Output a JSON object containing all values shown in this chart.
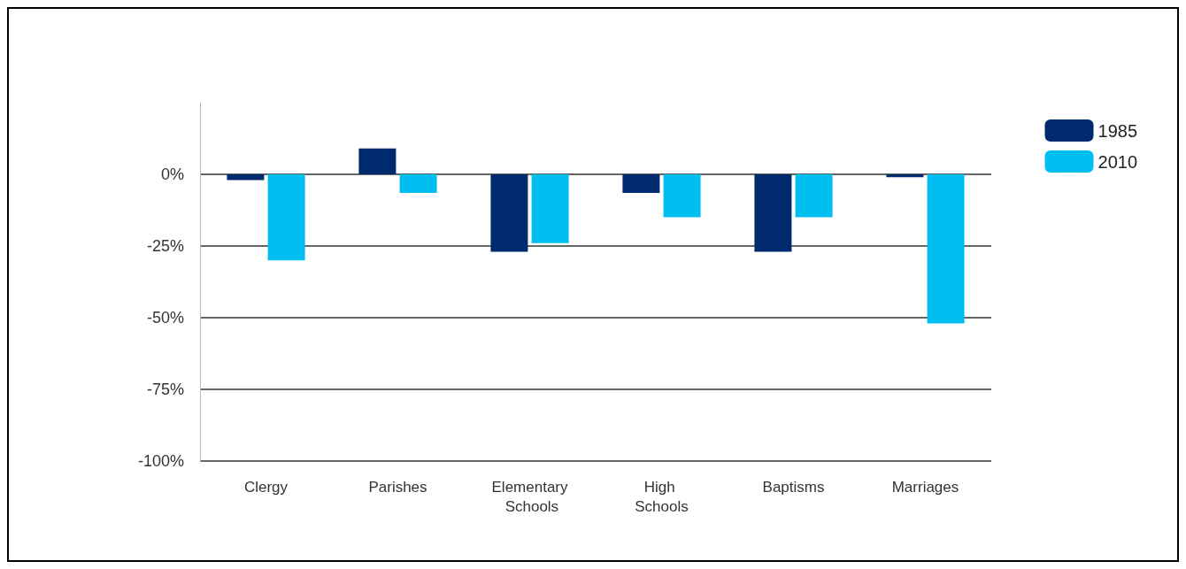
{
  "chart_data": {
    "type": "bar",
    "categories": [
      "Clergy",
      "Parishes",
      "Elementary Schools",
      "High Schools",
      "Baptisms",
      "Marriages"
    ],
    "series": [
      {
        "name": "1985",
        "color": "#002a6e",
        "values": [
          -2,
          9,
          -27,
          -6.5,
          -27,
          -1
        ]
      },
      {
        "name": "2010",
        "color": "#00bff0",
        "values": [
          -30,
          -6.5,
          -24,
          -15,
          -15,
          -52
        ]
      }
    ],
    "yticks": [
      {
        "value": -100,
        "label": "-100%"
      },
      {
        "value": -75,
        "label": "-75%"
      },
      {
        "value": -50,
        "label": "-50%"
      },
      {
        "value": -25,
        "label": "-25%"
      },
      {
        "value": 0,
        "label": "0%"
      }
    ],
    "ylim": [
      -100,
      25
    ],
    "grid": "y",
    "legend": "top right"
  }
}
